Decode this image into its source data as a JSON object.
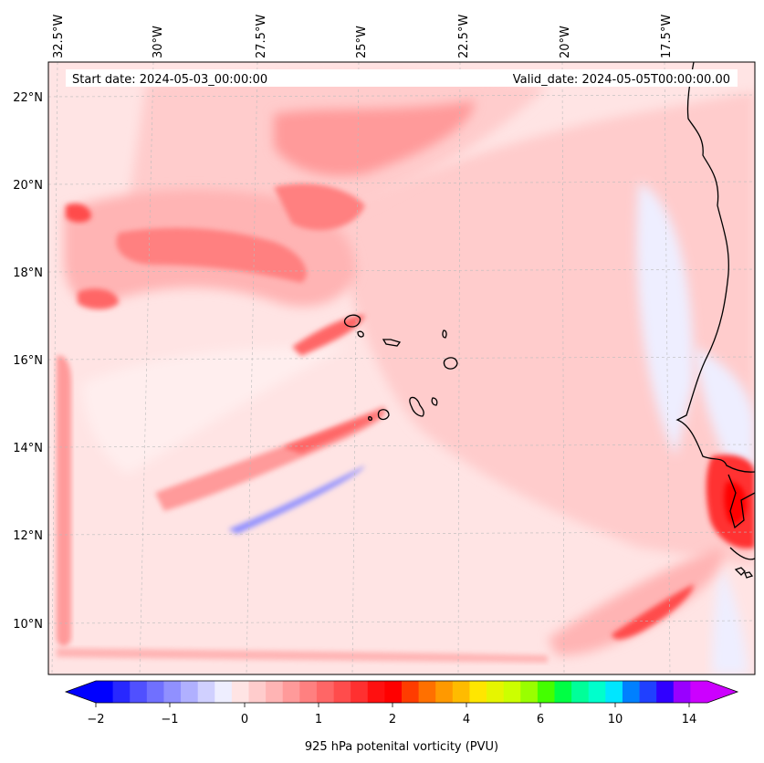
{
  "chart_data": {
    "type": "map",
    "projection": "map of the eastern tropical Atlantic (Cape Verde and West African coast)",
    "variable": "925 hPa potenital vorticity (PVU)",
    "start_date_label": "Start date: 2024-05-03_00:00:00",
    "valid_date_label": "Valid_date: 2024-05-05T00:00:00.00",
    "lon_ticks": [
      "32.5°W",
      "30°W",
      "27.5°W",
      "25°W",
      "22.5°W",
      "20°W",
      "17.5°W"
    ],
    "lat_ticks": [
      "22°N",
      "20°N",
      "18°N",
      "16°N",
      "14°N",
      "12°N",
      "10°N"
    ],
    "extent": {
      "lon_min": -32.5,
      "lon_max": -15.5,
      "lat_min": 9.0,
      "lat_max": 22.7
    },
    "colorbar": {
      "label": "925 hPa potenital vorticity (PVU)",
      "tick_labels": [
        "−2",
        "−1",
        "0",
        "1",
        "2",
        "4",
        "6",
        "10",
        "14"
      ],
      "extend": "both",
      "colors": [
        "#0000ff",
        "#2828ff",
        "#5050ff",
        "#7070ff",
        "#9090ff",
        "#b0b0ff",
        "#d0d0ff",
        "#eeeeff",
        "#ffe4e4",
        "#ffcccc",
        "#ffb4b4",
        "#ff9a9a",
        "#ff8080",
        "#ff6666",
        "#ff4c4c",
        "#ff3030",
        "#ff1010",
        "#ff0000",
        "#ff3c00",
        "#ff7000",
        "#ff9900",
        "#ffbb00",
        "#ffe600",
        "#e6f500",
        "#ccff00",
        "#99ff00",
        "#44ff00",
        "#00ff44",
        "#00ff99",
        "#00ffcc",
        "#00e6ff",
        "#0080ff",
        "#2040ff",
        "#3000ff",
        "#9900ff",
        "#cc00ff"
      ]
    },
    "colors": {
      "coastline": "#000000",
      "grid": "#bbbbbb"
    }
  }
}
